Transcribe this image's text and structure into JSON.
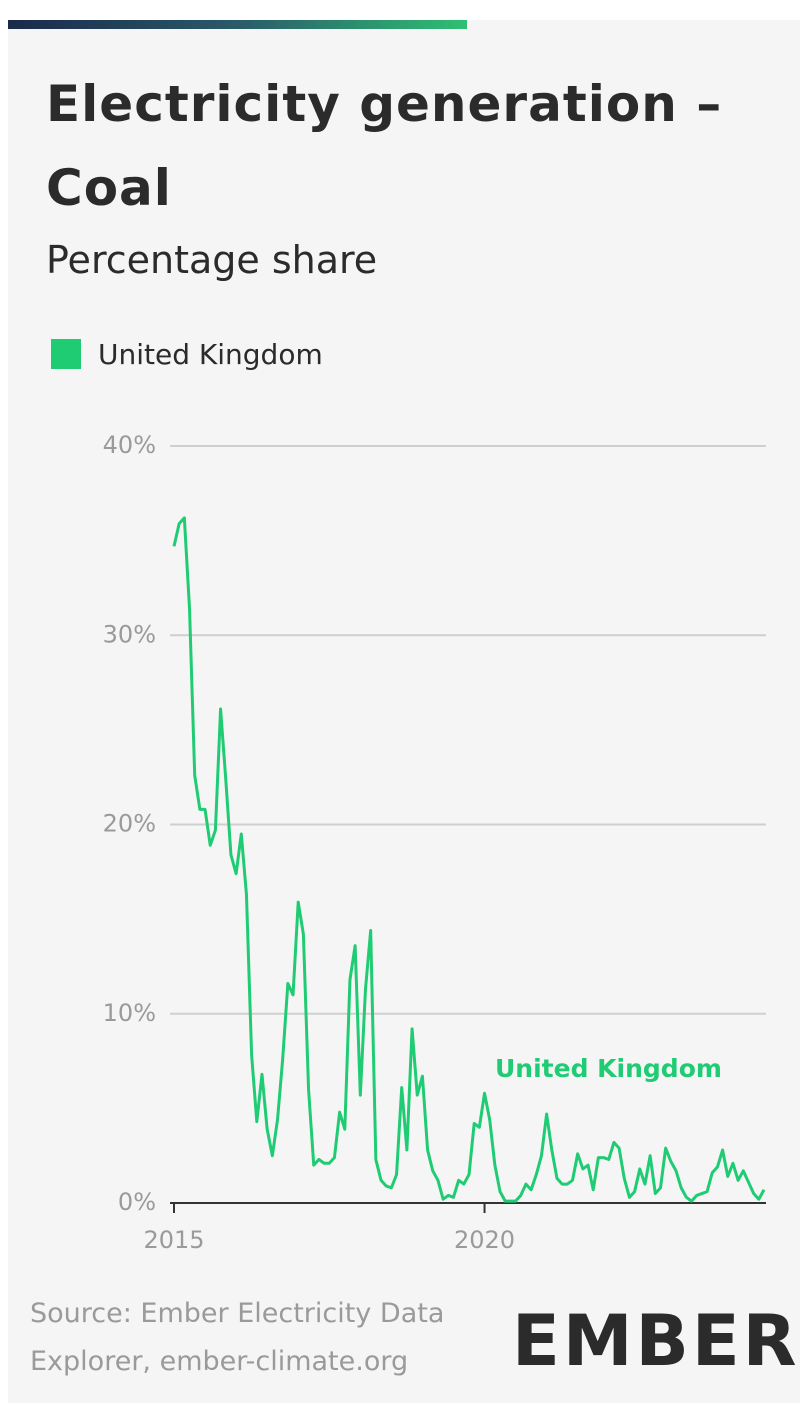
{
  "chart_data": {
    "type": "line",
    "title": "Electricity generation – Coal",
    "subtitle": "Percentage share",
    "source": "Source: Ember Electricity Data Explorer, ember-climate.org",
    "logo": "EMBER",
    "categories": [
      "2015",
      null,
      null,
      null,
      null,
      null,
      null,
      null,
      null,
      null,
      null,
      null,
      null,
      null,
      null,
      null,
      null,
      null,
      null,
      null,
      null,
      null,
      null,
      null,
      null,
      null,
      null,
      null,
      null,
      null,
      null,
      null,
      null,
      null,
      null,
      null,
      null,
      null,
      null,
      null,
      null,
      null,
      null,
      null,
      null,
      null,
      null,
      null,
      null,
      null,
      null,
      null,
      null,
      null,
      null,
      null,
      null,
      null,
      null,
      null,
      "2020",
      null,
      null,
      null,
      null,
      null,
      null,
      null,
      null,
      null,
      null,
      null,
      null,
      null,
      null,
      null,
      null,
      null,
      null,
      null,
      null,
      null,
      null,
      null,
      null,
      null,
      null,
      null,
      null,
      null,
      null,
      null,
      null,
      null,
      null,
      null,
      null,
      null,
      null,
      null,
      null,
      null,
      null,
      null,
      null,
      null,
      null,
      null,
      null,
      null,
      null,
      null,
      null,
      null,
      null
    ],
    "series": [
      {
        "name": "United Kingdom",
        "color": "#1fcc73",
        "values": [
          34.7,
          35.9,
          36.2,
          31.4,
          22.6,
          20.8,
          20.8,
          18.9,
          19.7,
          26.1,
          22.4,
          18.4,
          17.4,
          19.5,
          16.3,
          7.8,
          4.3,
          6.8,
          3.9,
          2.5,
          4.4,
          7.6,
          11.6,
          11.0,
          15.9,
          14.2,
          6.0,
          2.0,
          2.3,
          2.1,
          2.1,
          2.4,
          4.8,
          3.9,
          11.8,
          13.6,
          5.7,
          11.3,
          14.4,
          2.3,
          1.2,
          0.9,
          0.8,
          1.5,
          6.1,
          2.8,
          9.2,
          5.7,
          6.7,
          2.8,
          1.7,
          1.2,
          0.2,
          0.4,
          0.3,
          1.2,
          1.0,
          1.5,
          4.2,
          4.0,
          5.8,
          4.4,
          2.0,
          0.6,
          0.1,
          0.1,
          0.1,
          0.4,
          1.0,
          0.7,
          1.5,
          2.5,
          4.7,
          2.8,
          1.3,
          1.0,
          1.0,
          1.2,
          2.6,
          1.8,
          2.0,
          0.7,
          2.4,
          2.4,
          2.3,
          3.2,
          2.9,
          1.3,
          0.3,
          0.6,
          1.8,
          1.0,
          2.5,
          0.5,
          0.8,
          2.9,
          2.2,
          1.7,
          0.8,
          0.3,
          0.1,
          0.4,
          0.5,
          0.6,
          1.6,
          1.9,
          2.8,
          1.4,
          2.1,
          1.2,
          1.7,
          1.1,
          0.5,
          0.2,
          0.7
        ]
      }
    ],
    "ylim": [
      0,
      40
    ],
    "yticks": [
      {
        "value": 0,
        "label": "0%"
      },
      {
        "value": 10,
        "label": "10%"
      },
      {
        "value": 20,
        "label": "20%"
      },
      {
        "value": 30,
        "label": "30%"
      },
      {
        "value": 40,
        "label": "40%"
      }
    ],
    "grid": true
  }
}
